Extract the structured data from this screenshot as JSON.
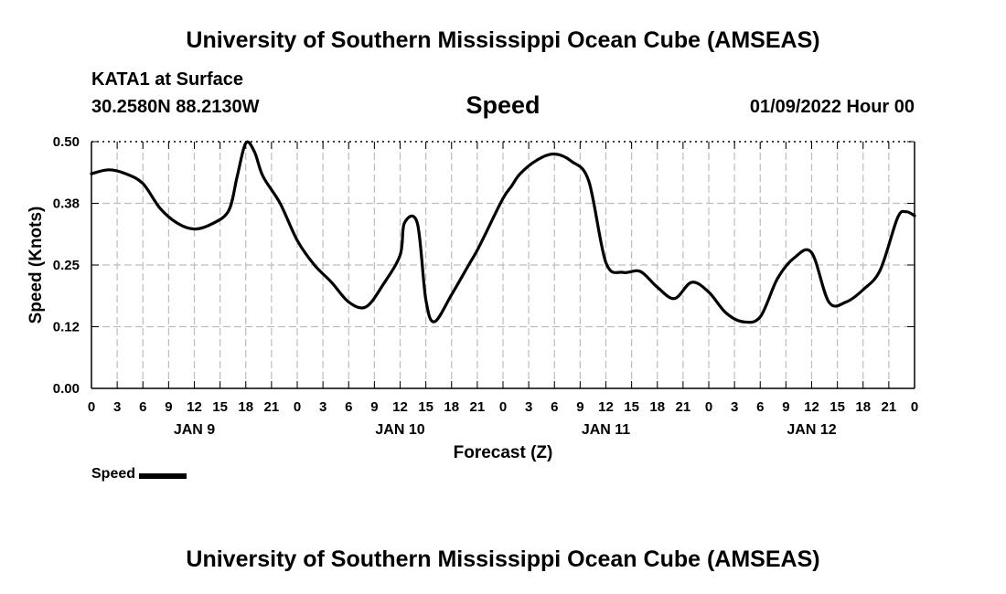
{
  "header": {
    "title": "University of Southern Mississippi Ocean Cube (AMSEAS)",
    "station": "KATA1 at Surface",
    "coords": "30.2580N  88.2130W",
    "variable": "Speed",
    "run_time": "01/09/2022 Hour 00"
  },
  "footer": {
    "title": "University of Southern Mississippi Ocean Cube (AMSEAS)"
  },
  "chart_data": {
    "type": "line",
    "title": "Speed",
    "xlabel": "Forecast (Z)",
    "ylabel": "Speed (Knots)",
    "ylim": [
      0,
      0.5
    ],
    "xlim": [
      0,
      96
    ],
    "yticks": [
      {
        "value": 0.0,
        "label": "0.00"
      },
      {
        "value": 0.125,
        "label": "0.12"
      },
      {
        "value": 0.25,
        "label": "0.25"
      },
      {
        "value": 0.375,
        "label": "0.38"
      },
      {
        "value": 0.5,
        "label": "0.50"
      }
    ],
    "xtick_labels": [
      "0",
      "3",
      "6",
      "9",
      "12",
      "15",
      "18",
      "21",
      "0",
      "3",
      "6",
      "9",
      "12",
      "15",
      "18",
      "21",
      "0",
      "3",
      "6",
      "9",
      "12",
      "15",
      "18",
      "21",
      "0",
      "3",
      "6",
      "9",
      "12",
      "15",
      "18",
      "21",
      "0"
    ],
    "date_labels": [
      {
        "hour": 12,
        "label": "JAN 9"
      },
      {
        "hour": 36,
        "label": "JAN 10"
      },
      {
        "hour": 60,
        "label": "JAN 11"
      },
      {
        "hour": 84,
        "label": "JAN 12"
      }
    ],
    "grid": true,
    "legend": "bottom-left",
    "series": [
      {
        "name": "Speed",
        "x": [
          0,
          2,
          4,
          6,
          8,
          10,
          12,
          14,
          16,
          17,
          18,
          19,
          20,
          22,
          24,
          26,
          28,
          30,
          32,
          34,
          36,
          36.5,
          38,
          39,
          40,
          42,
          44,
          45,
          46,
          48,
          49,
          50,
          52,
          54,
          56,
          58,
          60,
          62,
          64,
          66,
          68,
          70,
          72,
          74,
          76,
          78,
          80,
          82,
          84,
          86,
          88,
          90,
          92,
          94,
          95,
          96
        ],
        "y": [
          0.435,
          0.443,
          0.435,
          0.415,
          0.365,
          0.335,
          0.323,
          0.333,
          0.36,
          0.43,
          0.497,
          0.48,
          0.43,
          0.375,
          0.3,
          0.25,
          0.215,
          0.175,
          0.165,
          0.21,
          0.27,
          0.335,
          0.335,
          0.18,
          0.135,
          0.19,
          0.25,
          0.28,
          0.315,
          0.385,
          0.41,
          0.435,
          0.463,
          0.475,
          0.46,
          0.42,
          0.255,
          0.235,
          0.237,
          0.205,
          0.182,
          0.215,
          0.195,
          0.153,
          0.135,
          0.145,
          0.222,
          0.265,
          0.275,
          0.175,
          0.175,
          0.2,
          0.24,
          0.345,
          0.358,
          0.35
        ]
      }
    ]
  }
}
